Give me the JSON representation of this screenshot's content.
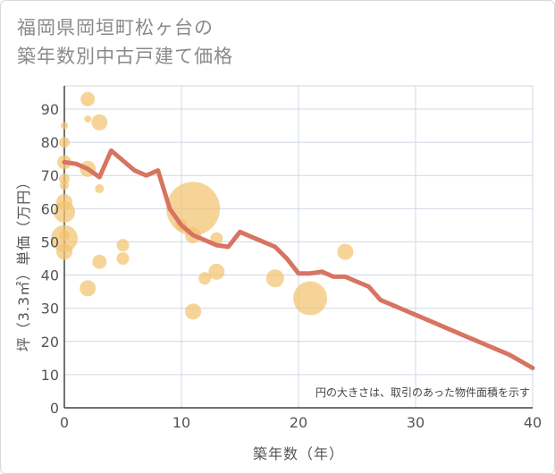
{
  "chart_data": {
    "type": "scatter",
    "title_lines": [
      "福岡県岡垣町松ヶ台の",
      "築年数別中古戸建て価格"
    ],
    "xlabel": "築年数（年）",
    "ylabel": "坪（3.3㎡）単価（万円）",
    "xlim": [
      0,
      40
    ],
    "ylim": [
      0,
      97
    ],
    "x_ticks": [
      0,
      10,
      20,
      30,
      40
    ],
    "y_ticks": [
      0,
      10,
      20,
      30,
      40,
      50,
      60,
      70,
      80,
      90
    ],
    "grid": true,
    "note": "円の大きさは、取引のあった物件面積を示す",
    "colors": {
      "bubble": "#f2c370",
      "line": "#d77462",
      "grid": "#cfd8e6"
    },
    "bubbles": [
      {
        "x": 0,
        "y": 85,
        "size": 4
      },
      {
        "x": 0,
        "y": 80,
        "size": 6
      },
      {
        "x": 0,
        "y": 74,
        "size": 8
      },
      {
        "x": 0,
        "y": 69,
        "size": 6
      },
      {
        "x": 0,
        "y": 67,
        "size": 5
      },
      {
        "x": 0,
        "y": 62,
        "size": 9
      },
      {
        "x": 0,
        "y": 59,
        "size": 12
      },
      {
        "x": 0,
        "y": 52,
        "size": 6
      },
      {
        "x": 0,
        "y": 51,
        "size": 15
      },
      {
        "x": 0,
        "y": 47,
        "size": 9
      },
      {
        "x": 2,
        "y": 93,
        "size": 8
      },
      {
        "x": 2,
        "y": 87,
        "size": 4
      },
      {
        "x": 2,
        "y": 72,
        "size": 9
      },
      {
        "x": 2,
        "y": 36,
        "size": 9
      },
      {
        "x": 3,
        "y": 86,
        "size": 9
      },
      {
        "x": 3,
        "y": 66,
        "size": 5
      },
      {
        "x": 3,
        "y": 44,
        "size": 8
      },
      {
        "x": 5,
        "y": 49,
        "size": 7
      },
      {
        "x": 5,
        "y": 45,
        "size": 7
      },
      {
        "x": 10,
        "y": 55,
        "size": 7
      },
      {
        "x": 11,
        "y": 60,
        "size": 30
      },
      {
        "x": 11,
        "y": 52,
        "size": 9
      },
      {
        "x": 11,
        "y": 29,
        "size": 9
      },
      {
        "x": 12,
        "y": 39,
        "size": 7
      },
      {
        "x": 13,
        "y": 51,
        "size": 7
      },
      {
        "x": 13,
        "y": 41,
        "size": 9
      },
      {
        "x": 18,
        "y": 39,
        "size": 10
      },
      {
        "x": 21,
        "y": 33,
        "size": 19
      },
      {
        "x": 24,
        "y": 47,
        "size": 9
      }
    ],
    "trend_line": {
      "x": [
        0,
        1,
        2,
        3,
        4,
        5,
        6,
        7,
        8,
        9,
        10,
        11,
        12,
        13,
        14,
        15,
        16,
        17,
        18,
        19,
        20,
        21,
        22,
        23,
        24,
        25,
        26,
        27,
        28,
        29,
        30,
        31,
        32,
        33,
        34,
        35,
        36,
        37,
        38,
        39,
        40
      ],
      "y": [
        74,
        73.5,
        72,
        69.5,
        77.5,
        74.5,
        71.5,
        70,
        71.5,
        60,
        55,
        52,
        50.5,
        49,
        48.5,
        53,
        51.5,
        50,
        48.5,
        45,
        40.5,
        40.5,
        41,
        39.5,
        39.5,
        38,
        36.5,
        32.5,
        31,
        29.5,
        28,
        26.5,
        25,
        23.5,
        22,
        20.5,
        19,
        17.5,
        16,
        14,
        12
      ]
    }
  }
}
